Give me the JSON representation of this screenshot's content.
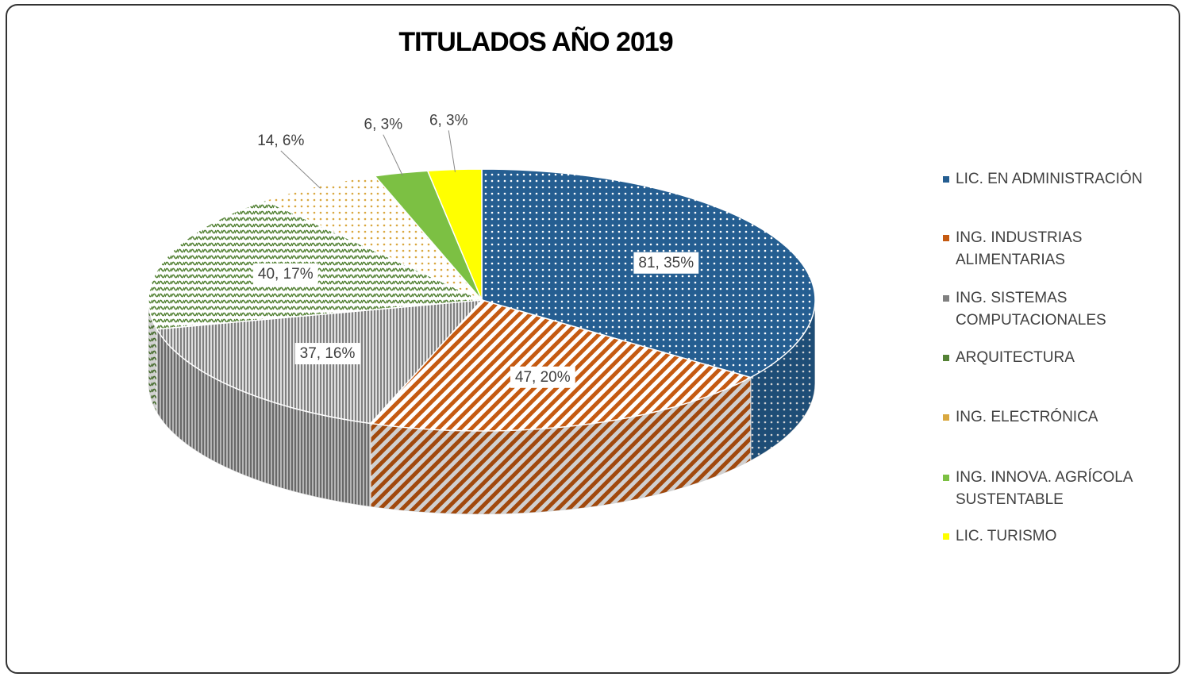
{
  "chart_data": {
    "type": "pie",
    "title": "TITULADOS AÑO 2019",
    "categories": [
      "LIC. EN ADMINISTRACIÓN",
      "ING. INDUSTRIAS ALIMENTARIAS",
      "ING. SISTEMAS COMPUTACIONALES",
      "ARQUITECTURA",
      "ING. ELECTRÓNICA",
      "ING. INNOVA. AGRÍCOLA SUSTENTABLE",
      "LIC. TURISMO"
    ],
    "values": [
      81,
      47,
      37,
      40,
      14,
      6,
      6
    ],
    "value_labels": [
      "81, 35%",
      "47, 20%",
      "37, 16%",
      "40, 17%",
      "14, 6%",
      "6, 3%",
      "6, 3%"
    ],
    "colors": [
      "#255e91",
      "#c55a11",
      "#808080",
      "#548235",
      "#d9a840",
      "#7cc043",
      "#ffff00"
    ],
    "legend": "right"
  }
}
